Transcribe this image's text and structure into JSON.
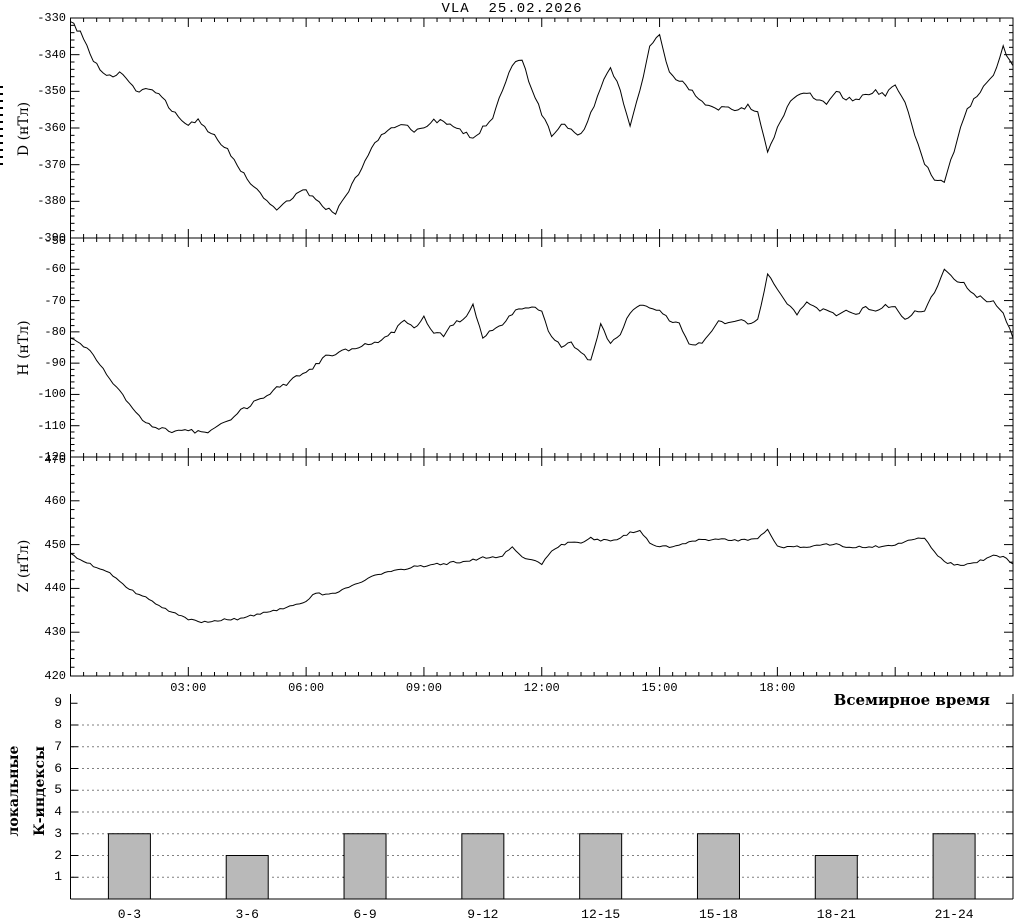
{
  "title": "VLA  25.02.2026",
  "time_axis": {
    "caption": "Всемирное время",
    "tick_hours": [
      3,
      6,
      9,
      12,
      15,
      18
    ],
    "tick_labels": [
      "03:00",
      "06:00",
      "09:00",
      "12:00",
      "15:00",
      "18:00"
    ]
  },
  "chart_data": {
    "type": "line",
    "x_unit": "hours, Universal Time",
    "x_range": [
      0,
      24
    ],
    "sample_step_hours": 0.25,
    "panels": [
      {
        "id": "D",
        "ylabel": "D (нТл)",
        "y_range": [
          -390,
          -330
        ],
        "yticks": [
          -330,
          -340,
          -350,
          -360,
          -370,
          -380,
          -390
        ],
        "values": [
          -331,
          -334,
          -340,
          -344,
          -346,
          -345,
          -348,
          -350,
          -349,
          -351,
          -354,
          -357,
          -359,
          -358,
          -361,
          -363,
          -366,
          -370,
          -374,
          -377,
          -380,
          -382,
          -380,
          -378,
          -377,
          -380,
          -382,
          -383,
          -379,
          -374,
          -369,
          -364,
          -361,
          -360,
          -359,
          -361,
          -360,
          -358,
          -358,
          -360,
          -361,
          -363,
          -360,
          -357,
          -350,
          -343,
          -341,
          -350,
          -356,
          -362,
          -359,
          -360,
          -362,
          -356,
          -349,
          -343,
          -350,
          -359,
          -350,
          -338,
          -334,
          -345,
          -347,
          -349,
          -352,
          -354,
          -355,
          -354,
          -355,
          -354,
          -356,
          -367,
          -360,
          -354,
          -351,
          -350,
          -352,
          -353,
          -350,
          -352,
          -352,
          -351,
          -350,
          -351,
          -348,
          -353,
          -362,
          -370,
          -374,
          -375,
          -366,
          -357,
          -352,
          -349,
          -346,
          -338,
          -343
        ]
      },
      {
        "id": "H",
        "ylabel": "H (нТл)",
        "y_range": [
          -120,
          -50
        ],
        "yticks": [
          -50,
          -60,
          -70,
          -80,
          -90,
          -100,
          -110,
          -120
        ],
        "values": [
          -82,
          -83.5,
          -86,
          -90.5,
          -95,
          -99,
          -103,
          -107,
          -109.5,
          -111,
          -111.5,
          -112,
          -111.5,
          -112,
          -112.5,
          -110,
          -108.5,
          -106,
          -104,
          -102,
          -100,
          -98,
          -96.5,
          -94.5,
          -93,
          -90.5,
          -88,
          -87,
          -86,
          -85,
          -84,
          -83.5,
          -82,
          -80,
          -76,
          -79,
          -75.5,
          -80,
          -81,
          -77.5,
          -76,
          -71.5,
          -82,
          -79,
          -77.5,
          -74,
          -72.5,
          -71.5,
          -74,
          -82,
          -84.5,
          -83.5,
          -87,
          -89,
          -77.5,
          -84,
          -80.5,
          -73.5,
          -71,
          -72,
          -73,
          -76,
          -77.5,
          -83.5,
          -84,
          -81.5,
          -77,
          -77,
          -76,
          -77.5,
          -76,
          -61.5,
          -66.5,
          -71,
          -74,
          -70.5,
          -72.5,
          -73.5,
          -74.5,
          -73.5,
          -74.5,
          -72,
          -73.5,
          -71.5,
          -72,
          -76,
          -73.5,
          -73,
          -67,
          -60.5,
          -63,
          -64.5,
          -68,
          -69.5,
          -70.5,
          -73.5,
          -82
        ]
      },
      {
        "id": "Z",
        "ylabel": "Z (нТл)",
        "y_range": [
          420,
          470
        ],
        "yticks": [
          470,
          460,
          450,
          440,
          430,
          420
        ],
        "values": [
          448,
          446.5,
          445.5,
          444.5,
          443.5,
          441.5,
          440,
          438.5,
          437.5,
          436,
          435,
          434,
          433,
          432.5,
          432.3,
          432.5,
          433,
          433,
          433.5,
          434,
          434.5,
          435,
          435.5,
          436.5,
          437,
          439,
          438.5,
          439,
          440,
          441,
          442,
          443,
          443.5,
          444,
          444.5,
          445,
          445,
          445.5,
          445.5,
          446,
          446,
          446.5,
          447,
          447,
          447.5,
          449.5,
          447,
          446.5,
          445.5,
          448.5,
          450,
          450.5,
          450.5,
          451.5,
          451,
          451,
          451.5,
          452.8,
          453,
          450.5,
          449.5,
          449.5,
          450,
          450.5,
          451,
          451,
          451.2,
          451,
          451,
          451,
          451.5,
          453.5,
          449.5,
          449.5,
          449.5,
          449.5,
          450,
          450,
          450,
          449.5,
          449.5,
          449.5,
          449.5,
          449.5,
          450,
          450.5,
          451.3,
          451.5,
          448.5,
          446,
          445.5,
          445.3,
          445.8,
          446.5,
          447.6,
          447.2,
          445.6
        ]
      }
    ],
    "k_index": {
      "type": "bar",
      "ylabel_outer": "локальные",
      "ylabel_inner": "К-индексы",
      "y_range": [
        0,
        9
      ],
      "yticks": [
        1,
        2,
        3,
        4,
        5,
        6,
        7,
        8,
        9
      ],
      "dotted_gridlines": [
        1,
        2,
        3,
        4,
        5,
        6,
        7,
        8
      ],
      "categories": [
        "0-3",
        "3-6",
        "6-9",
        "9-12",
        "12-15",
        "15-18",
        "18-21",
        "21-24"
      ],
      "values": [
        3,
        2,
        3,
        3,
        3,
        3,
        2,
        3
      ],
      "bar_color": "#b9b9b9"
    }
  }
}
